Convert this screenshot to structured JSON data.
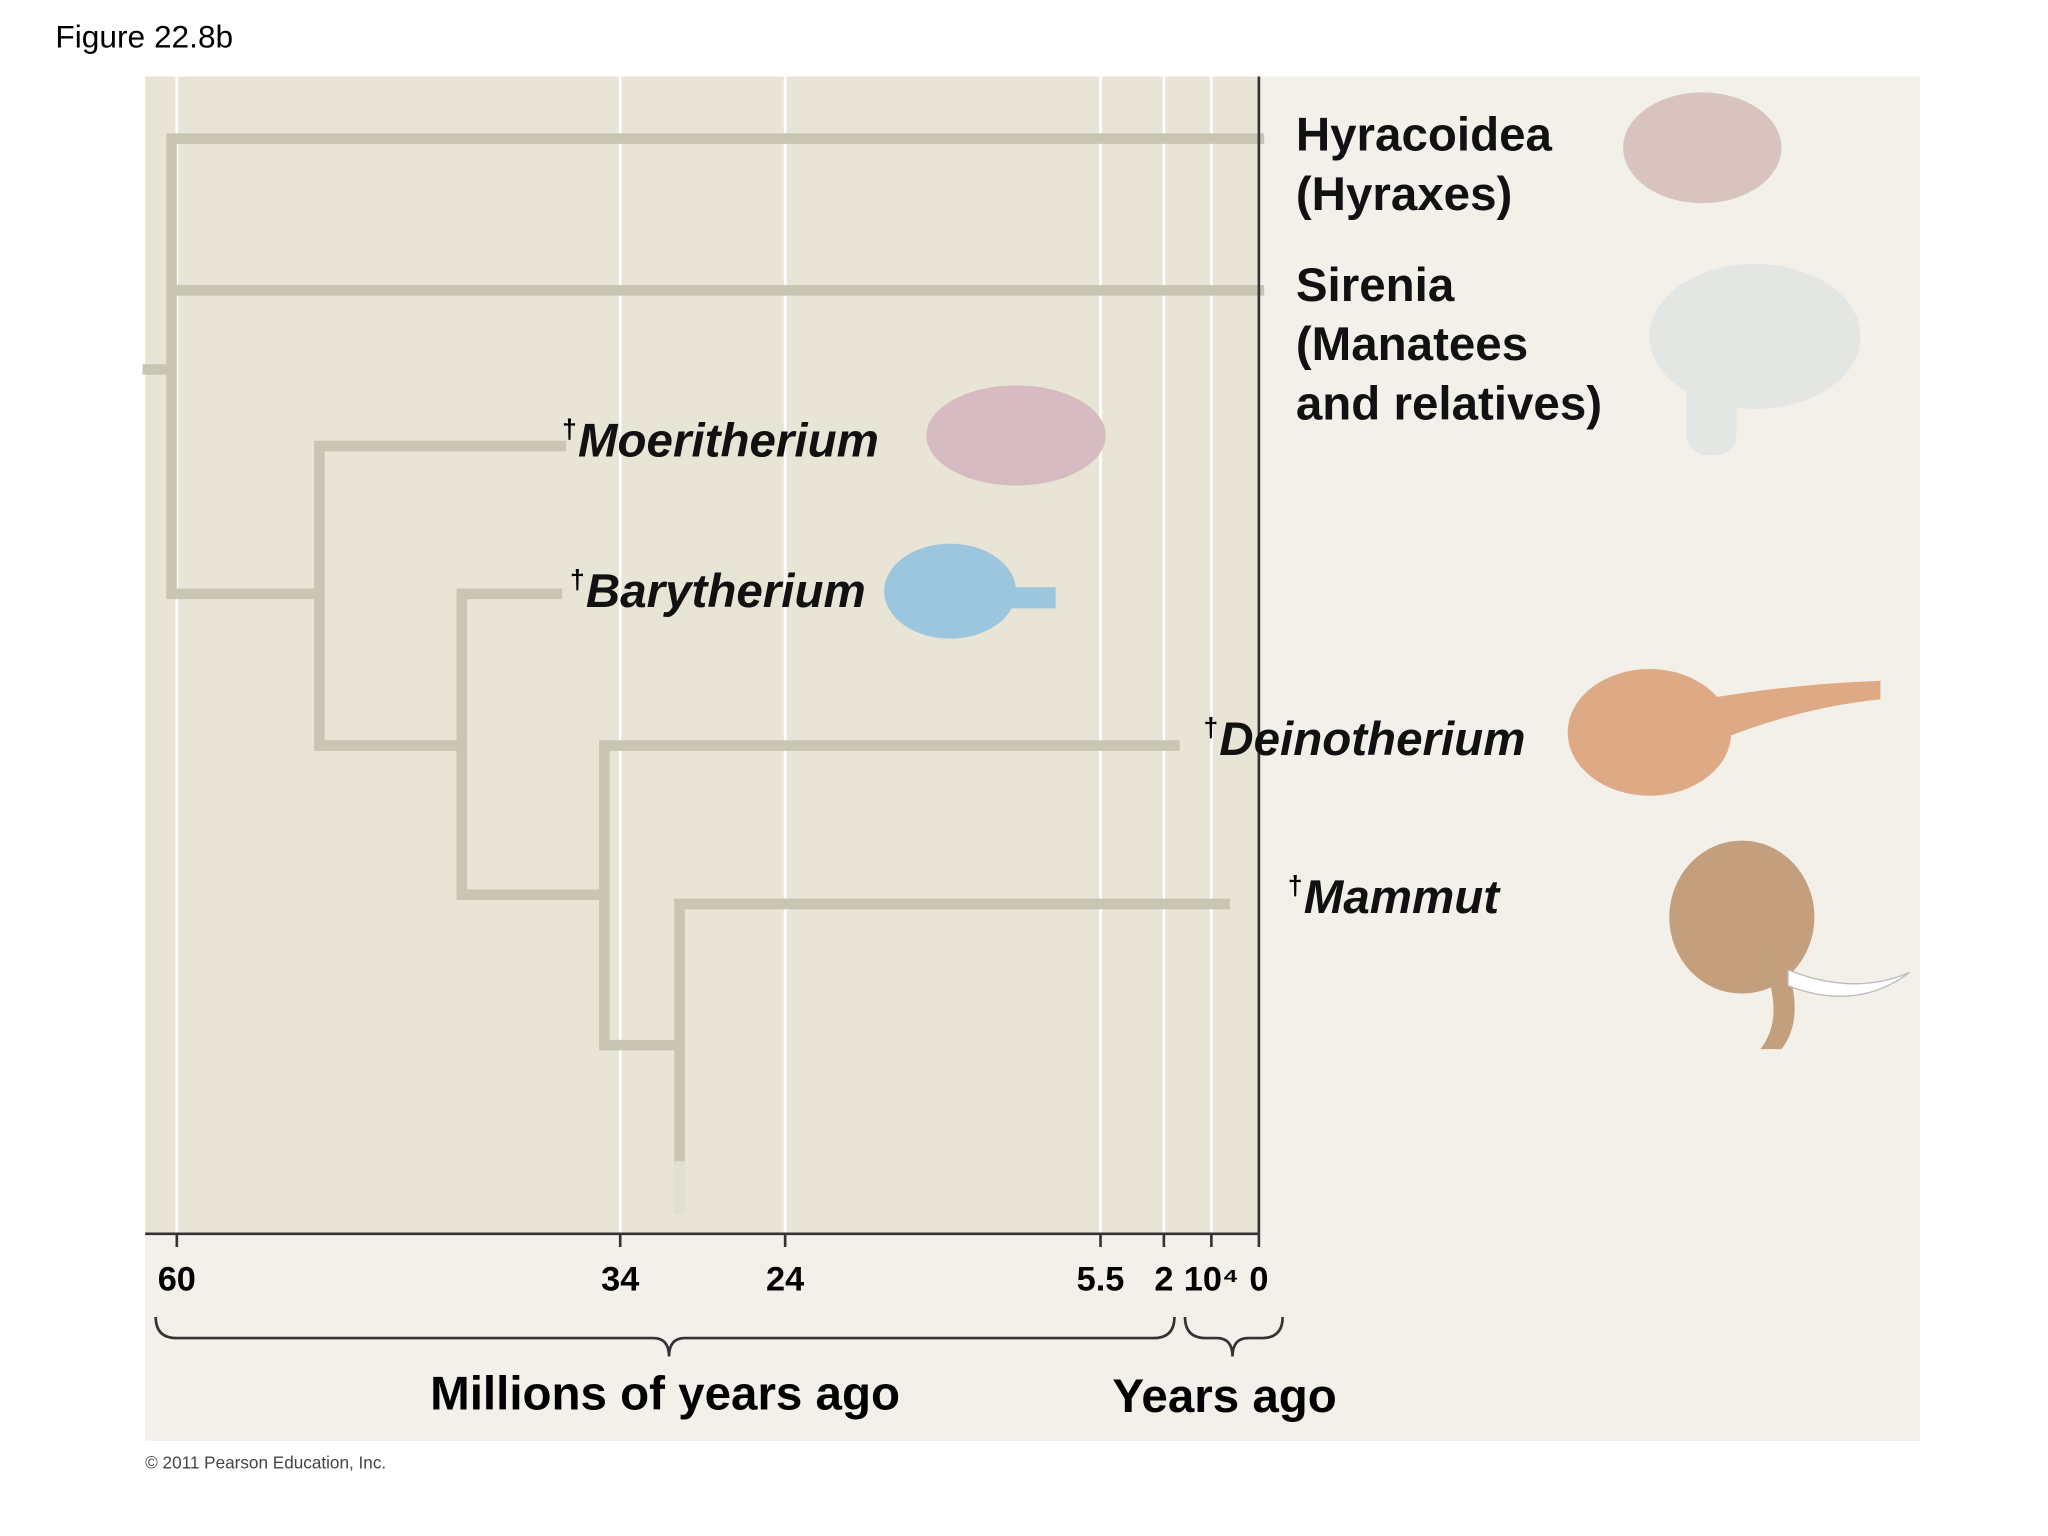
{
  "figure_label": "Figure 22.8b",
  "taxa": [
    {
      "lines": [
        "Hyracoidea",
        "(Hyraxes)"
      ]
    },
    {
      "lines": [
        "Sirenia",
        "(Manatees",
        "and relatives)"
      ]
    },
    {
      "marker": "†",
      "lines": [
        "Moeritherium"
      ]
    },
    {
      "marker": "†",
      "lines": [
        "Barytherium"
      ]
    },
    {
      "marker": "†",
      "lines": [
        "Deinotherium"
      ]
    },
    {
      "marker": "†",
      "lines": [
        "Mammut"
      ]
    }
  ],
  "axis": {
    "ticks": [
      "60",
      "34",
      "24",
      "5.5",
      "2",
      "10⁴",
      "0"
    ],
    "labels": [
      "Millions of years ago",
      "Years ago"
    ]
  },
  "copyright": "© 2011 Pearson Education, Inc."
}
